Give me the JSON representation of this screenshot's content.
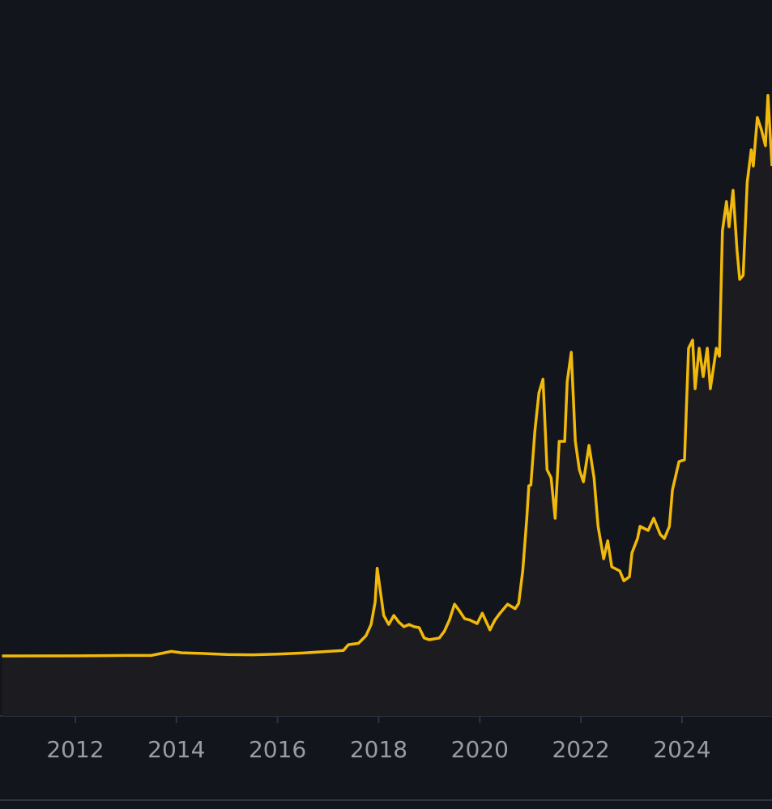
{
  "chart_data": {
    "type": "line",
    "color": "#f0b90b",
    "fill": "#1c1b1f",
    "background": "#13151c",
    "x": [
      2010.55,
      2012,
      2013,
      2013.5,
      2013.9,
      2014.1,
      2014.5,
      2015,
      2015.5,
      2016,
      2016.5,
      2017,
      2017.3,
      2017.4,
      2017.6,
      2017.75,
      2017.85,
      2017.93,
      2017.97,
      2018.05,
      2018.1,
      2018.2,
      2018.3,
      2018.4,
      2018.5,
      2018.6,
      2018.7,
      2018.8,
      2018.9,
      2019,
      2019.2,
      2019.3,
      2019.4,
      2019.5,
      2019.6,
      2019.7,
      2019.8,
      2019.95,
      2020.05,
      2020.2,
      2020.3,
      2020.4,
      2020.55,
      2020.7,
      2020.77,
      2020.85,
      2020.93,
      2020.97,
      2021.01,
      2021.09,
      2021.17,
      2021.25,
      2021.33,
      2021.41,
      2021.49,
      2021.57,
      2021.68,
      2021.73,
      2021.81,
      2021.89,
      2021.97,
      2022.05,
      2022.16,
      2022.26,
      2022.34,
      2022.45,
      2022.53,
      2022.61,
      2022.77,
      2022.85,
      2022.96,
      2023.01,
      2023.12,
      2023.17,
      2023.33,
      2023.44,
      2023.57,
      2023.65,
      2023.75,
      2023.81,
      2023.94,
      2024.05,
      2024.13,
      2024.21,
      2024.26,
      2024.34,
      2024.42,
      2024.5,
      2024.56,
      2024.68,
      2024.74,
      2024.8,
      2024.88,
      2024.93,
      2025.01,
      2025.09,
      2025.14,
      2025.21,
      2025.29,
      2025.37,
      2025.41,
      2025.49,
      2025.57,
      2025.65,
      2025.7,
      2025.78
    ],
    "values": [
      0,
      10,
      100,
      100,
      1000,
      700,
      550,
      300,
      250,
      400,
      650,
      1000,
      1200,
      2500,
      2800,
      4500,
      7000,
      12000,
      19500,
      13000,
      9000,
      7000,
      9000,
      7500,
      6500,
      7000,
      6500,
      6300,
      4000,
      3600,
      4000,
      5500,
      8000,
      11500,
      10000,
      8300,
      8000,
      7200,
      9500,
      5800,
      8000,
      9500,
      11500,
      10500,
      11700,
      18900,
      30600,
      37800,
      38000,
      50000,
      58500,
      61500,
      41400,
      39600,
      30600,
      47700,
      47700,
      61000,
      67500,
      47700,
      41400,
      38700,
      46800,
      39600,
      28800,
      21600,
      25600,
      19800,
      18900,
      16700,
      17600,
      22900,
      26100,
      28800,
      27900,
      30600,
      27000,
      26100,
      28800,
      36900,
      43200,
      43600,
      68400,
      70200,
      59400,
      68400,
      62100,
      68400,
      59400,
      68400,
      66600,
      94500,
      101000,
      95400,
      103500,
      90000,
      83700,
      84600,
      105300,
      112500,
      108900,
      119700,
      117000,
      113400,
      124600,
      108900
    ],
    "xlim": [
      2010.51,
      2025.78
    ],
    "ylim": [
      -13320,
      145800
    ],
    "xticks": [
      2012,
      2014,
      2016,
      2018,
      2020,
      2022,
      2024
    ]
  }
}
